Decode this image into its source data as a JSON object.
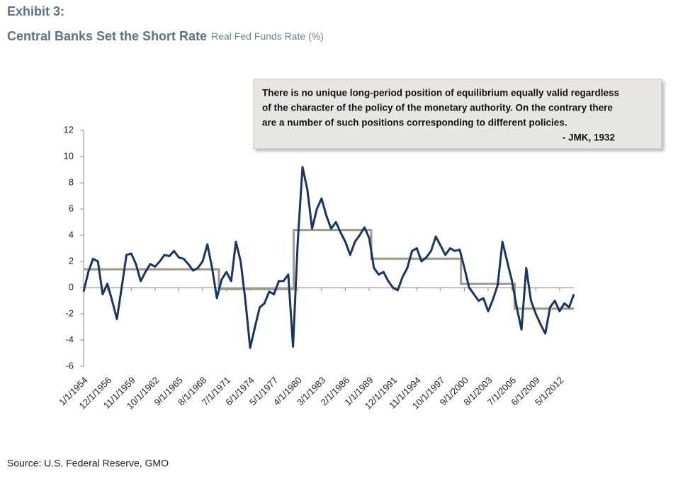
{
  "chart_data": {
    "type": "line",
    "exhibit": "Exhibit 3:",
    "title": "Central Banks Set the Short Rate",
    "subtitle": "Real Fed Funds Rate (%)",
    "source": "Source: U.S. Federal Reserve, GMO",
    "quote": {
      "lines": [
        "There is no unique long-period position of equilibrium equally valid regardless",
        "of the character of the policy of the monetary authority. On the contrary there",
        "are a number of such positions corresponding to different policies."
      ],
      "attribution": "- JMK, 1932"
    },
    "x": [
      "1/1/1954",
      "8/1/1954",
      "3/1/1955",
      "10/1/1955",
      "5/1/1956",
      "12/1/1956",
      "7/1/1957",
      "2/1/1958",
      "9/1/1958",
      "4/1/1959",
      "11/1/1959",
      "6/1/1960",
      "1/1/1961",
      "8/1/1961",
      "3/1/1962",
      "10/1/1962",
      "5/1/1963",
      "12/1/1963",
      "7/1/1964",
      "2/1/1965",
      "9/1/1965",
      "4/1/1966",
      "11/1/1966",
      "6/1/1967",
      "1/1/1968",
      "8/1/1968",
      "3/1/1969",
      "10/1/1969",
      "5/1/1970",
      "12/1/1970",
      "7/1/1971",
      "2/1/1972",
      "9/1/1972",
      "4/1/1973",
      "11/1/1973",
      "6/1/1974",
      "1/1/1975",
      "8/1/1975",
      "3/1/1976",
      "10/1/1976",
      "5/1/1977",
      "12/1/1977",
      "7/1/1978",
      "2/1/1979",
      "9/1/1979",
      "4/1/1980",
      "11/1/1980",
      "6/1/1981",
      "1/1/1982",
      "8/1/1982",
      "3/1/1983",
      "10/1/1983",
      "5/1/1984",
      "12/1/1984",
      "7/1/1985",
      "2/1/1986",
      "9/1/1986",
      "4/1/1987",
      "11/1/1987",
      "6/1/1988",
      "1/1/1989",
      "8/1/1989",
      "3/1/1990",
      "10/1/1990",
      "5/1/1991",
      "12/1/1991",
      "7/1/1992",
      "2/1/1993",
      "9/1/1993",
      "4/1/1994",
      "11/1/1994",
      "6/1/1995",
      "1/1/1996",
      "8/1/1996",
      "3/1/1997",
      "10/1/1997",
      "5/1/1998",
      "12/1/1998",
      "7/1/1999",
      "2/1/2000",
      "9/1/2000",
      "4/1/2001",
      "11/1/2001",
      "6/1/2002",
      "1/1/2003",
      "8/1/2003",
      "3/1/2004",
      "10/1/2004",
      "5/1/2005",
      "12/1/2005",
      "7/1/2006",
      "2/1/2007",
      "9/1/2007",
      "4/1/2008",
      "11/1/2008",
      "6/1/2009",
      "1/1/2010",
      "8/1/2010",
      "3/1/2011",
      "10/1/2011",
      "5/1/2012",
      "12/1/2012",
      "7/1/2013",
      "2/1/2014"
    ],
    "series": [
      {
        "color": "#1c355e",
        "values": [
          -0.3,
          1.2,
          2.2,
          2.0,
          -0.5,
          0.3,
          -1.0,
          -2.4,
          0.0,
          2.5,
          2.6,
          1.8,
          0.5,
          1.2,
          1.8,
          1.6,
          2.0,
          2.5,
          2.4,
          2.8,
          2.3,
          2.2,
          1.8,
          1.3,
          1.5,
          2.0,
          3.3,
          1.5,
          -0.8,
          0.6,
          1.2,
          0.5,
          3.5,
          2.0,
          -1.0,
          -4.6,
          -3.0,
          -1.5,
          -1.2,
          -0.3,
          -0.5,
          0.5,
          0.5,
          1.0,
          -4.5,
          3.5,
          9.2,
          7.5,
          4.5,
          6.0,
          6.8,
          5.5,
          4.5,
          5.0,
          4.2,
          3.5,
          2.5,
          3.5,
          4.0,
          4.6,
          3.8,
          1.5,
          1.0,
          1.2,
          0.5,
          0.0,
          -0.2,
          0.8,
          1.5,
          2.8,
          3.0,
          2.0,
          2.3,
          2.8,
          3.9,
          3.2,
          2.5,
          3.0,
          2.8,
          2.9,
          1.5,
          0.0,
          -0.5,
          -1.0,
          -0.8,
          -1.8,
          -0.9,
          0.2,
          3.5,
          2.0,
          0.5,
          -1.5,
          -3.2,
          1.5,
          -1.0,
          -2.0,
          -2.8,
          -3.5,
          -1.5,
          -1.0,
          -1.8,
          -1.2,
          -1.5,
          -0.5
        ]
      }
    ],
    "regimes": {
      "color": "#a39b90",
      "periods": [
        {
          "start": "1/1/1954",
          "end": "8/1/1970",
          "value": 1.4
        },
        {
          "start": "8/1/1970",
          "end": "10/1/1979",
          "value": -0.1
        },
        {
          "start": "10/1/1979",
          "end": "4/1/1989",
          "value": 4.4
        },
        {
          "start": "4/1/1989",
          "end": "4/1/2000",
          "value": 2.2
        },
        {
          "start": "4/1/2000",
          "end": "11/1/2006",
          "value": 0.3
        },
        {
          "start": "11/1/2006",
          "end": "2/1/2014",
          "value": -1.6
        }
      ]
    },
    "xlim": [
      "1/1/1954",
      "2/1/2014"
    ],
    "xticks": [
      "1/1/1954",
      "12/1/1956",
      "11/1/1959",
      "10/1/1962",
      "9/1/1965",
      "8/1/1968",
      "7/1/1971",
      "6/1/1974",
      "5/1/1977",
      "4/1/1980",
      "3/1/1983",
      "2/1/1986",
      "1/1/1989",
      "12/1/1991",
      "11/1/1994",
      "10/1/1997",
      "9/1/2000",
      "8/1/2003",
      "7/1/2006",
      "6/1/2009",
      "5/1/2012"
    ],
    "ylim": [
      -6,
      12
    ],
    "yticks": [
      -6,
      -4,
      -2,
      0,
      2,
      4,
      6,
      8,
      10,
      12
    ]
  }
}
